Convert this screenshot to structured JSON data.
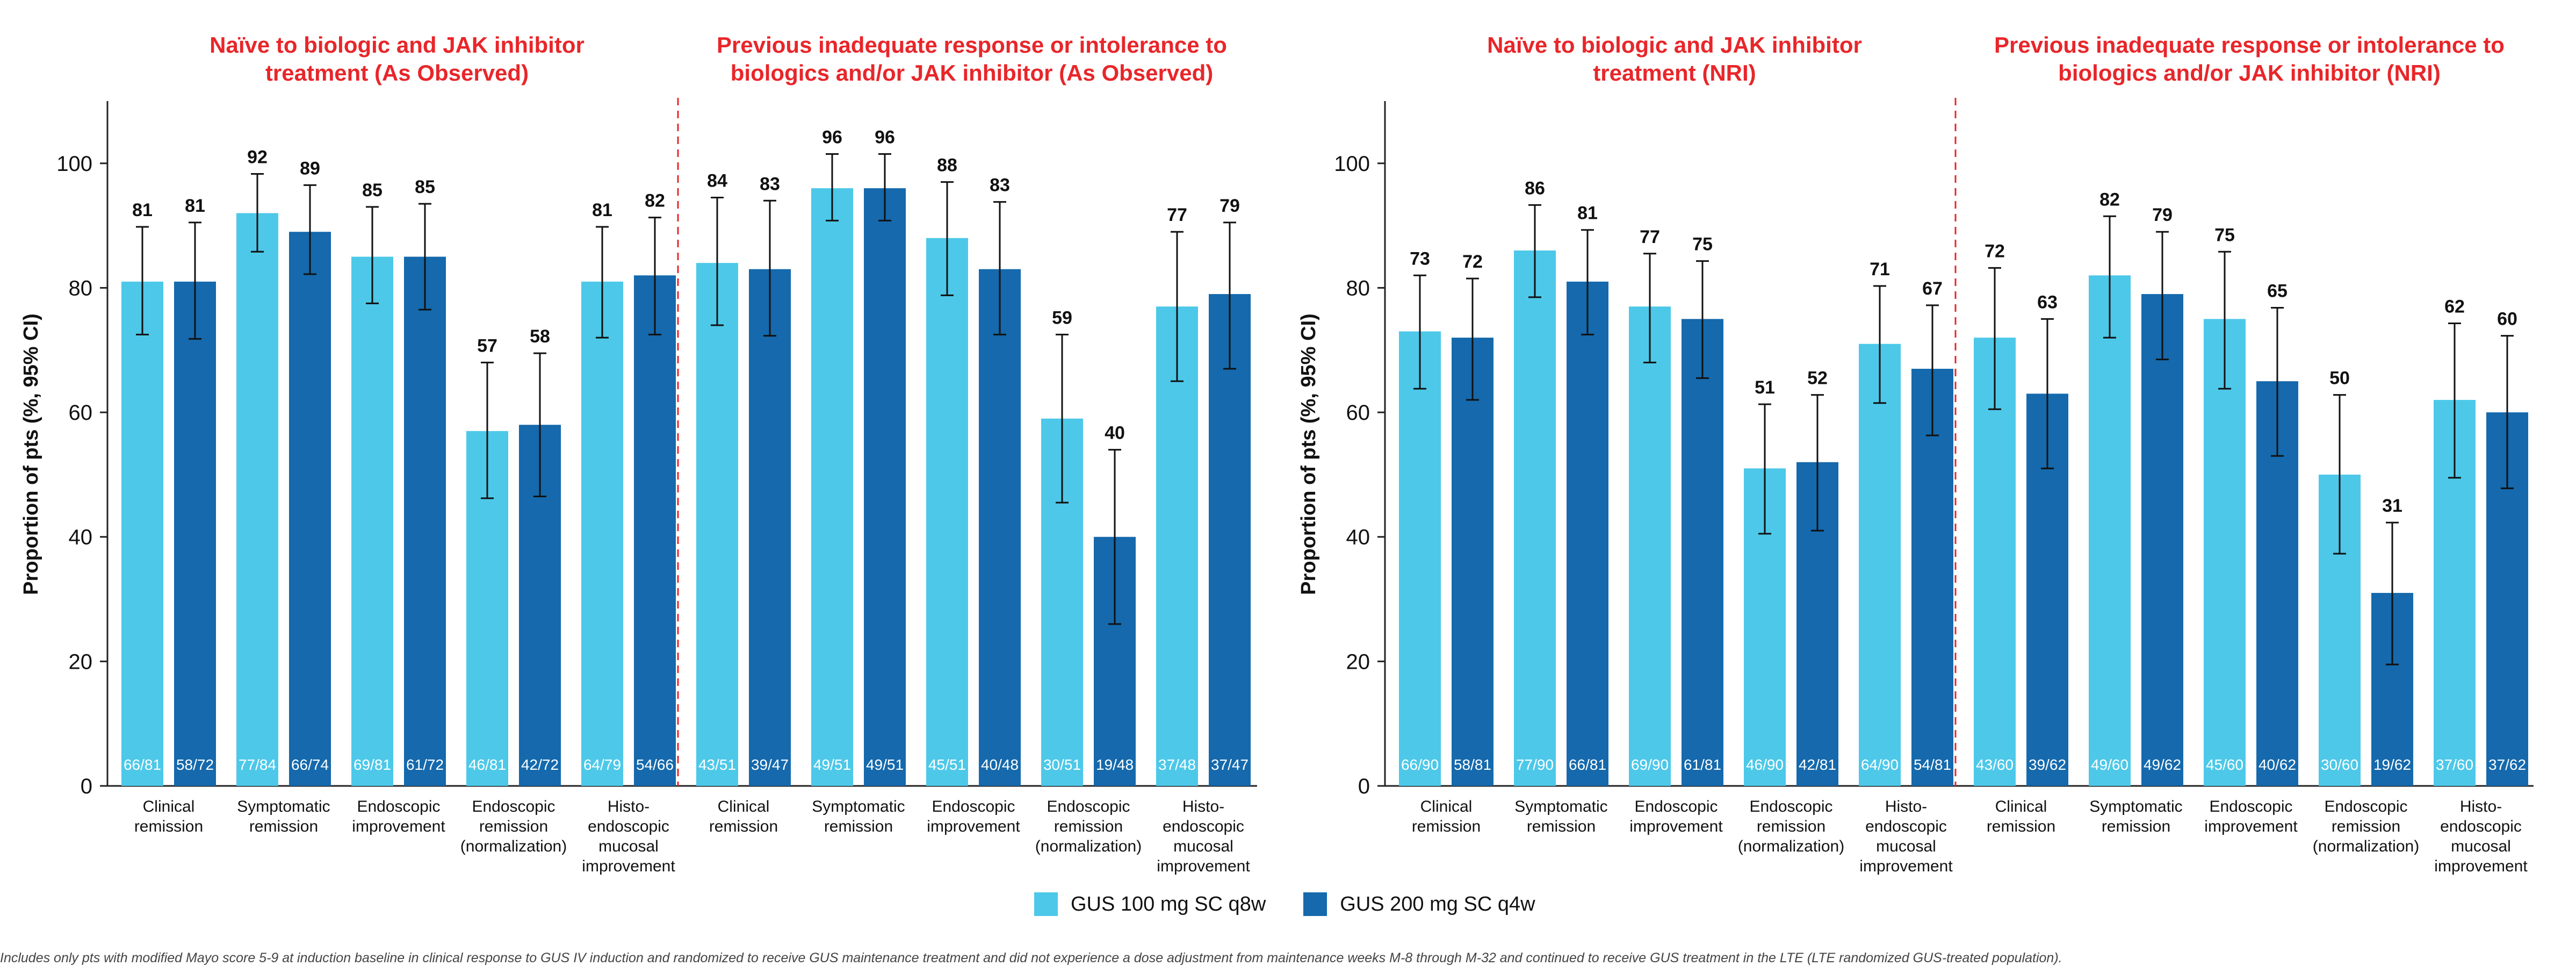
{
  "colors": {
    "light": "#4dc8e9",
    "dark": "#1569ac",
    "title": "#e8262a",
    "divider": "#e8262a"
  },
  "legend": {
    "light_label": "GUS 100 mg SC q8w",
    "dark_label": "GUS 200 mg SC q4w"
  },
  "footnote": "Includes only pts with modified Mayo score 5-9 at induction baseline in clinical response to GUS IV induction and randomized to receive GUS maintenance treatment and did not experience a dose adjustment from maintenance weeks M-8 through M-32 and continued to receive GUS treatment in the LTE (LTE randomized GUS-treated population).",
  "chart_data": [
    {
      "type": "bar",
      "ylabel": "Proportion of pts (%, 95% CI)",
      "ylim": [
        0,
        110
      ],
      "yticks": [
        0,
        20,
        40,
        60,
        80,
        100
      ],
      "series": [
        {
          "name": "GUS 100 mg SC q8w",
          "color": "light"
        },
        {
          "name": "GUS 200 mg SC q4w",
          "color": "dark"
        }
      ],
      "panels": [
        {
          "title": [
            "Naïve to biologic and JAK inhibitor",
            "treatment (As Observed)"
          ],
          "groups": [
            {
              "label": [
                "Clinical",
                "remission"
              ],
              "bars": [
                {
                  "value": 81,
                  "ci": [
                    72.5,
                    89.8
                  ],
                  "n": "66/81"
                },
                {
                  "value": 81,
                  "ci": [
                    71.8,
                    90.5
                  ],
                  "n": "58/72"
                }
              ]
            },
            {
              "label": [
                "Symptomatic",
                "remission"
              ],
              "bars": [
                {
                  "value": 92,
                  "ci": [
                    85.8,
                    98.3
                  ],
                  "n": "77/84"
                },
                {
                  "value": 89,
                  "ci": [
                    82.2,
                    96.5
                  ],
                  "n": "66/74"
                }
              ]
            },
            {
              "label": [
                "Endoscopic",
                "improvement"
              ],
              "bars": [
                {
                  "value": 85,
                  "ci": [
                    77.5,
                    93.0
                  ],
                  "n": "69/81"
                },
                {
                  "value": 85,
                  "ci": [
                    76.5,
                    93.5
                  ],
                  "n": "61/72"
                }
              ]
            },
            {
              "label": [
                "Endoscopic",
                "remission",
                "(normalization)"
              ],
              "bars": [
                {
                  "value": 57,
                  "ci": [
                    46.2,
                    68.0
                  ],
                  "n": "46/81"
                },
                {
                  "value": 58,
                  "ci": [
                    46.5,
                    69.5
                  ],
                  "n": "42/72"
                }
              ]
            },
            {
              "label": [
                "Histo-",
                "endoscopic",
                "mucosal",
                "improvement"
              ],
              "bars": [
                {
                  "value": 81,
                  "ci": [
                    72.0,
                    89.8
                  ],
                  "n": "64/79"
                },
                {
                  "value": 82,
                  "ci": [
                    72.5,
                    91.3
                  ],
                  "n": "54/66"
                }
              ]
            }
          ]
        },
        {
          "title": [
            "Previous inadequate response or intolerance to",
            "biologics and/or JAK inhibitor (As Observed)"
          ],
          "groups": [
            {
              "label": [
                "Clinical",
                "remission"
              ],
              "bars": [
                {
                  "value": 84,
                  "ci": [
                    74.0,
                    94.5
                  ],
                  "n": "43/51"
                },
                {
                  "value": 83,
                  "ci": [
                    72.3,
                    94.0
                  ],
                  "n": "39/47"
                }
              ]
            },
            {
              "label": [
                "Symptomatic",
                "remission"
              ],
              "bars": [
                {
                  "value": 96,
                  "ci": [
                    90.8,
                    101.5
                  ],
                  "n": "49/51"
                },
                {
                  "value": 96,
                  "ci": [
                    90.8,
                    101.5
                  ],
                  "n": "49/51"
                }
              ]
            },
            {
              "label": [
                "Endoscopic",
                "improvement"
              ],
              "bars": [
                {
                  "value": 88,
                  "ci": [
                    78.8,
                    97.0
                  ],
                  "n": "45/51"
                },
                {
                  "value": 83,
                  "ci": [
                    72.5,
                    93.8
                  ],
                  "n": "40/48"
                }
              ]
            },
            {
              "label": [
                "Endoscopic",
                "remission",
                "(normalization)"
              ],
              "bars": [
                {
                  "value": 59,
                  "ci": [
                    45.5,
                    72.5
                  ],
                  "n": "30/51"
                },
                {
                  "value": 40,
                  "ci": [
                    26.0,
                    54.0
                  ],
                  "n": "19/48"
                }
              ]
            },
            {
              "label": [
                "Histo-",
                "endoscopic",
                "mucosal",
                "improvement"
              ],
              "bars": [
                {
                  "value": 77,
                  "ci": [
                    65.0,
                    89.0
                  ],
                  "n": "37/48"
                },
                {
                  "value": 79,
                  "ci": [
                    67.0,
                    90.5
                  ],
                  "n": "37/47"
                }
              ]
            }
          ]
        }
      ]
    },
    {
      "type": "bar",
      "ylabel": "Proportion of pts (%, 95% CI)",
      "ylim": [
        0,
        110
      ],
      "yticks": [
        0,
        20,
        40,
        60,
        80,
        100
      ],
      "series": [
        {
          "name": "GUS 100 mg SC q8w",
          "color": "light"
        },
        {
          "name": "GUS 200 mg SC q4w",
          "color": "dark"
        }
      ],
      "panels": [
        {
          "title": [
            "Naïve to biologic and JAK inhibitor",
            "treatment (NRI)"
          ],
          "groups": [
            {
              "label": [
                "Clinical",
                "remission"
              ],
              "bars": [
                {
                  "value": 73,
                  "ci": [
                    63.8,
                    82.0
                  ],
                  "n": "66/90"
                },
                {
                  "value": 72,
                  "ci": [
                    62.0,
                    81.5
                  ],
                  "n": "58/81"
                }
              ]
            },
            {
              "label": [
                "Symptomatic",
                "remission"
              ],
              "bars": [
                {
                  "value": 86,
                  "ci": [
                    78.5,
                    93.3
                  ],
                  "n": "77/90"
                },
                {
                  "value": 81,
                  "ci": [
                    72.5,
                    89.3
                  ],
                  "n": "66/81"
                }
              ]
            },
            {
              "label": [
                "Endoscopic",
                "improvement"
              ],
              "bars": [
                {
                  "value": 77,
                  "ci": [
                    68.0,
                    85.5
                  ],
                  "n": "69/90"
                },
                {
                  "value": 75,
                  "ci": [
                    65.5,
                    84.3
                  ],
                  "n": "61/81"
                }
              ]
            },
            {
              "label": [
                "Endoscopic",
                "remission",
                "(normalization)"
              ],
              "bars": [
                {
                  "value": 51,
                  "ci": [
                    40.5,
                    61.3
                  ],
                  "n": "46/90"
                },
                {
                  "value": 52,
                  "ci": [
                    41.0,
                    62.8
                  ],
                  "n": "42/81"
                }
              ]
            },
            {
              "label": [
                "Histo-",
                "endoscopic",
                "mucosal",
                "improvement"
              ],
              "bars": [
                {
                  "value": 71,
                  "ci": [
                    61.5,
                    80.3
                  ],
                  "n": "64/90"
                },
                {
                  "value": 67,
                  "ci": [
                    56.3,
                    77.2
                  ],
                  "n": "54/81"
                }
              ]
            }
          ]
        },
        {
          "title": [
            "Previous inadequate response or intolerance to",
            "biologics and/or JAK inhibitor (NRI)"
          ],
          "groups": [
            {
              "label": [
                "Clinical",
                "remission"
              ],
              "bars": [
                {
                  "value": 72,
                  "ci": [
                    60.5,
                    83.2
                  ],
                  "n": "43/60"
                },
                {
                  "value": 63,
                  "ci": [
                    51.0,
                    75.0
                  ],
                  "n": "39/62"
                }
              ]
            },
            {
              "label": [
                "Symptomatic",
                "remission"
              ],
              "bars": [
                {
                  "value": 82,
                  "ci": [
                    72.0,
                    91.5
                  ],
                  "n": "49/60"
                },
                {
                  "value": 79,
                  "ci": [
                    68.5,
                    89.0
                  ],
                  "n": "49/62"
                }
              ]
            },
            {
              "label": [
                "Endoscopic",
                "improvement"
              ],
              "bars": [
                {
                  "value": 75,
                  "ci": [
                    63.8,
                    85.8
                  ],
                  "n": "45/60"
                },
                {
                  "value": 65,
                  "ci": [
                    53.0,
                    76.8
                  ],
                  "n": "40/62"
                }
              ]
            },
            {
              "label": [
                "Endoscopic",
                "remission",
                "(normalization)"
              ],
              "bars": [
                {
                  "value": 50,
                  "ci": [
                    37.3,
                    62.8
                  ],
                  "n": "30/60"
                },
                {
                  "value": 31,
                  "ci": [
                    19.5,
                    42.3
                  ],
                  "n": "19/62"
                }
              ]
            },
            {
              "label": [
                "Histo-",
                "endoscopic",
                "mucosal",
                "improvement"
              ],
              "bars": [
                {
                  "value": 62,
                  "ci": [
                    49.5,
                    74.3
                  ],
                  "n": "37/60"
                },
                {
                  "value": 60,
                  "ci": [
                    47.8,
                    72.3
                  ],
                  "n": "37/62"
                }
              ]
            }
          ]
        }
      ]
    }
  ]
}
